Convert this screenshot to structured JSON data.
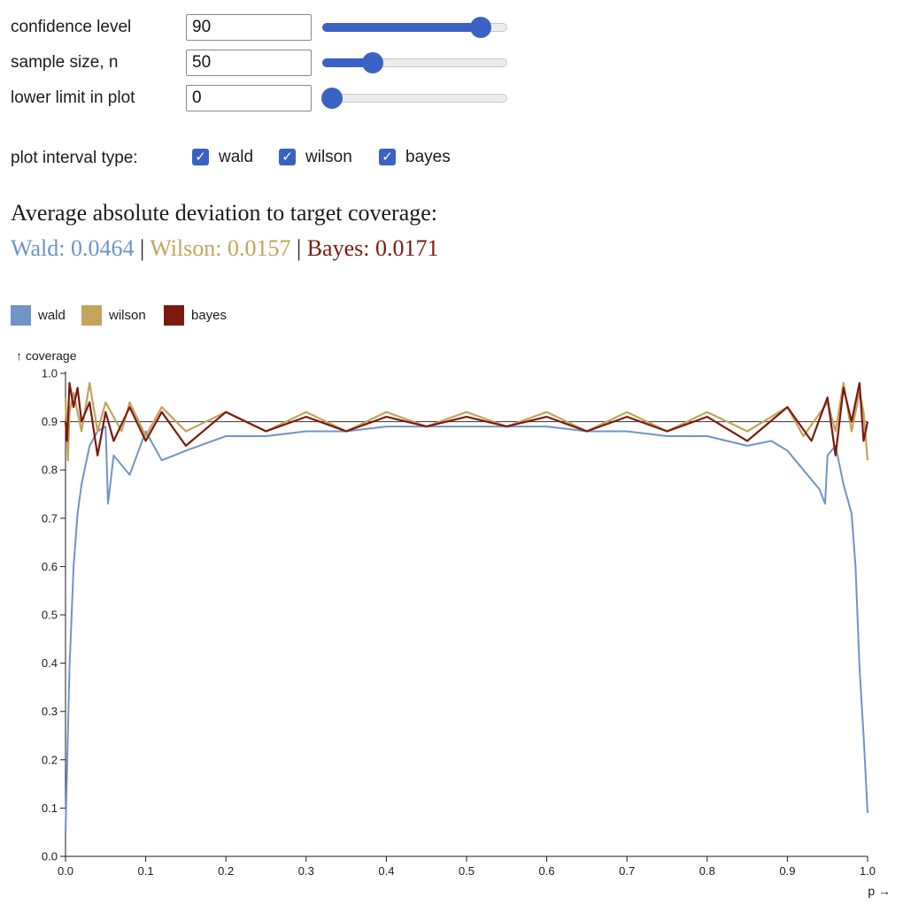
{
  "controls": [
    {
      "label": "confidence level",
      "value": "90",
      "slider_min": 0,
      "slider_max": 100,
      "slider_value": 90
    },
    {
      "label": "sample size, n",
      "value": "50",
      "slider_min": 1,
      "slider_max": 200,
      "slider_value": 50
    },
    {
      "label": "lower limit in plot",
      "value": "0",
      "slider_min": 0,
      "slider_max": 1,
      "slider_value": 0
    }
  ],
  "interval_types": {
    "label": "plot interval type:",
    "options": [
      {
        "label": "wald",
        "checked": true
      },
      {
        "label": "wilson",
        "checked": true
      },
      {
        "label": "bayes",
        "checked": true
      }
    ]
  },
  "summary": {
    "heading": "Average absolute deviation to target coverage:",
    "separator": "|",
    "wald": "Wald: 0.0464",
    "wilson": "Wilson: 0.0157",
    "bayes": "Bayes: 0.0171"
  },
  "colors": {
    "wald": "#7094c4",
    "wilson": "#c4a35a",
    "bayes": "#7b1a0f",
    "accent": "#3a62c4",
    "target_line": "#333333"
  },
  "chart_data": {
    "type": "line",
    "legend": [
      "wald",
      "wilson",
      "bayes"
    ],
    "legend_placement": "top-left",
    "xlabel": "p →",
    "ylabel": "↑ coverage",
    "xlim": [
      0,
      1
    ],
    "ylim": [
      0,
      1
    ],
    "x_ticks": [
      "0.0",
      "0.1",
      "0.2",
      "0.3",
      "0.4",
      "0.5",
      "0.6",
      "0.7",
      "0.8",
      "0.9",
      "1.0"
    ],
    "y_ticks": [
      "0.0",
      "0.1",
      "0.2",
      "0.3",
      "0.4",
      "0.5",
      "0.6",
      "0.7",
      "0.8",
      "0.9",
      "1.0"
    ],
    "target_coverage": 0.9,
    "grid": false,
    "series": [
      {
        "name": "wald",
        "x": [
          0.0,
          0.005,
          0.01,
          0.015,
          0.02,
          0.03,
          0.04,
          0.05,
          0.053,
          0.06,
          0.08,
          0.1,
          0.12,
          0.15,
          0.2,
          0.25,
          0.3,
          0.35,
          0.4,
          0.45,
          0.5,
          0.55,
          0.6,
          0.65,
          0.7,
          0.75,
          0.8,
          0.85,
          0.88,
          0.9,
          0.92,
          0.94,
          0.947,
          0.95,
          0.96,
          0.97,
          0.98,
          0.985,
          0.99,
          0.995,
          1.0
        ],
        "y": [
          0.05,
          0.39,
          0.6,
          0.71,
          0.77,
          0.85,
          0.88,
          0.89,
          0.73,
          0.83,
          0.79,
          0.88,
          0.82,
          0.84,
          0.87,
          0.87,
          0.88,
          0.88,
          0.89,
          0.89,
          0.89,
          0.89,
          0.89,
          0.88,
          0.88,
          0.87,
          0.87,
          0.85,
          0.86,
          0.84,
          0.8,
          0.76,
          0.73,
          0.83,
          0.85,
          0.77,
          0.71,
          0.6,
          0.39,
          0.25,
          0.09
        ]
      },
      {
        "name": "wilson",
        "x": [
          0.0,
          0.003,
          0.005,
          0.01,
          0.02,
          0.03,
          0.04,
          0.05,
          0.07,
          0.08,
          0.1,
          0.12,
          0.15,
          0.2,
          0.25,
          0.3,
          0.35,
          0.4,
          0.45,
          0.5,
          0.55,
          0.6,
          0.65,
          0.7,
          0.75,
          0.8,
          0.85,
          0.9,
          0.92,
          0.95,
          0.96,
          0.97,
          0.98,
          0.99,
          0.995,
          1.0
        ],
        "y": [
          0.95,
          0.82,
          0.92,
          0.96,
          0.88,
          0.98,
          0.88,
          0.94,
          0.88,
          0.94,
          0.87,
          0.93,
          0.88,
          0.92,
          0.88,
          0.92,
          0.88,
          0.92,
          0.89,
          0.92,
          0.89,
          0.92,
          0.88,
          0.92,
          0.88,
          0.92,
          0.88,
          0.93,
          0.87,
          0.94,
          0.88,
          0.98,
          0.88,
          0.96,
          0.92,
          0.82
        ]
      },
      {
        "name": "bayes",
        "x": [
          0.0,
          0.002,
          0.005,
          0.01,
          0.015,
          0.02,
          0.03,
          0.04,
          0.05,
          0.06,
          0.08,
          0.1,
          0.12,
          0.15,
          0.2,
          0.25,
          0.3,
          0.35,
          0.4,
          0.45,
          0.5,
          0.55,
          0.6,
          0.65,
          0.7,
          0.75,
          0.8,
          0.85,
          0.9,
          0.93,
          0.95,
          0.96,
          0.97,
          0.98,
          0.99,
          0.995,
          1.0
        ],
        "y": [
          0.9,
          0.86,
          0.98,
          0.93,
          0.97,
          0.9,
          0.94,
          0.83,
          0.92,
          0.86,
          0.93,
          0.86,
          0.92,
          0.85,
          0.92,
          0.88,
          0.91,
          0.88,
          0.91,
          0.89,
          0.91,
          0.89,
          0.91,
          0.88,
          0.91,
          0.88,
          0.91,
          0.86,
          0.93,
          0.86,
          0.95,
          0.83,
          0.97,
          0.9,
          0.98,
          0.86,
          0.9
        ]
      }
    ]
  }
}
